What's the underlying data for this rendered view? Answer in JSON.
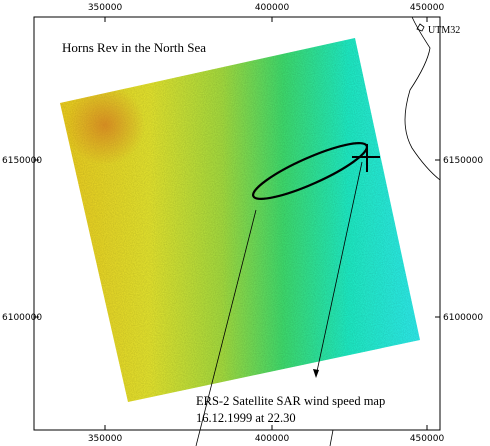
{
  "map": {
    "title": "Horns Rev in the North Sea",
    "projection": "UTM32",
    "caption": [
      "ERS-2 Satellite SAR wind speed map",
      "16.12.1999 at 22.30"
    ],
    "easting_ticks": [
      350000,
      400000,
      450000
    ],
    "northing_ticks": [
      6150000,
      6100000
    ]
  }
}
